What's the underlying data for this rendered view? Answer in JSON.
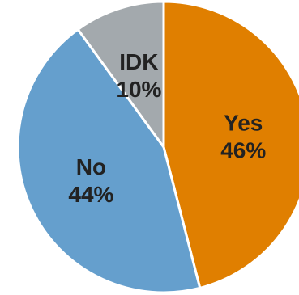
{
  "chart_data": {
    "type": "pie",
    "categories": [
      "Yes",
      "No",
      "IDK"
    ],
    "values": [
      46,
      44,
      10
    ],
    "labels": [
      "46%",
      "44%",
      "10%"
    ],
    "colors": [
      "#e07f00",
      "#659fcd",
      "#a3a9ad"
    ],
    "label_colors": [
      "#222222",
      "#222222",
      "#222222"
    ],
    "title": "",
    "legend": "none"
  }
}
